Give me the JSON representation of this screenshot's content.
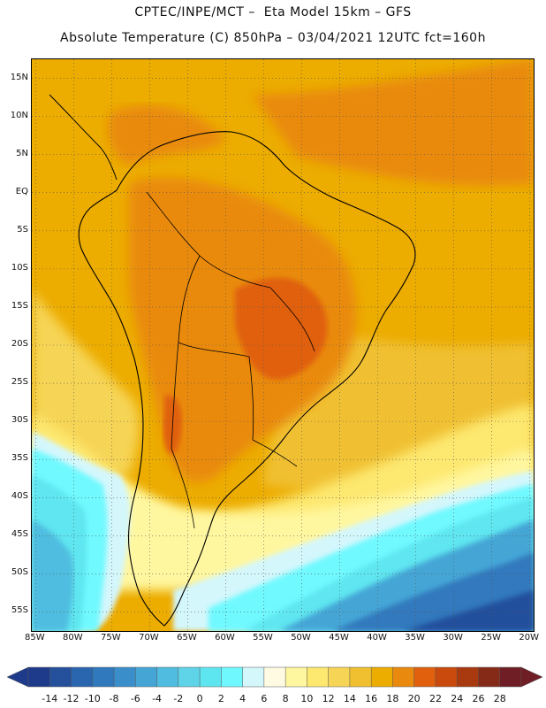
{
  "header": {
    "line1": "CPTEC/INPE/MCT –  Eta Model 15km – GFS",
    "line2": "Absolute Temperature (C) 850hPa – 03/04/2021 12UTC fct=160h"
  },
  "map": {
    "lat_labels": [
      "15N",
      "10N",
      "5N",
      "EQ",
      "5S",
      "10S",
      "15S",
      "20S",
      "25S",
      "30S",
      "35S",
      "40S",
      "45S",
      "50S",
      "55S"
    ],
    "lat_values": [
      15,
      10,
      5,
      0,
      -5,
      -10,
      -15,
      -20,
      -25,
      -30,
      -35,
      -40,
      -45,
      -50,
      -55
    ],
    "lon_labels": [
      "85W",
      "80W",
      "75W",
      "70W",
      "65W",
      "60W",
      "55W",
      "50W",
      "45W",
      "40W",
      "35W",
      "30W",
      "25W",
      "20W"
    ],
    "lon_values": [
      -85,
      -80,
      -75,
      -70,
      -65,
      -60,
      -55,
      -50,
      -45,
      -40,
      -35,
      -30,
      -25,
      -20
    ],
    "lat_range": [
      -57.5,
      17.5
    ],
    "lon_range": [
      -85.5,
      -19.5
    ],
    "grid": "dotted"
  },
  "colorbar": {
    "labels": [
      "-14",
      "-12",
      "-10",
      "-8",
      "-6",
      "-4",
      "-2",
      "0",
      "2",
      "4",
      "6",
      "8",
      "10",
      "12",
      "14",
      "16",
      "18",
      "20",
      "22",
      "24",
      "26",
      "28"
    ],
    "colors": [
      "#1e3a8a",
      "#24509c",
      "#2a66b0",
      "#3079bd",
      "#3a8fcb",
      "#45a6d6",
      "#50bde0",
      "#5fd3e8",
      "#5ee6f0",
      "#6ff9ff",
      "#d4f7fc",
      "#fffbe2",
      "#fff7a0",
      "#fde870",
      "#f6d455",
      "#f0c030",
      "#ecac00",
      "#e98a0f",
      "#e0600e",
      "#c94a0c",
      "#a93a10",
      "#862a18",
      "#6e1e24"
    ]
  }
}
